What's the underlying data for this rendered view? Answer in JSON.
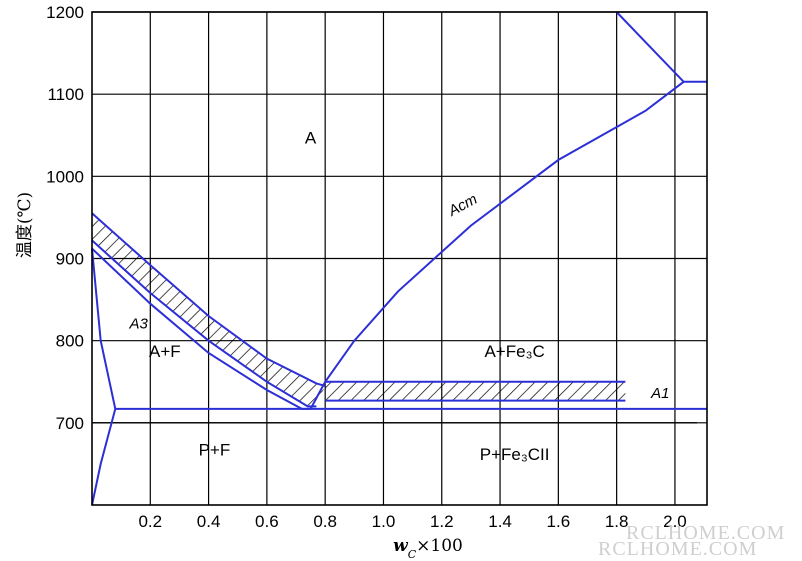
{
  "chart_data": {
    "type": "phase-diagram",
    "ylabel": "温度(℃)",
    "xlabel_main": "w",
    "xlabel_sub": "C",
    "xlabel_suffix": "×100",
    "xlim": [
      0,
      2.11
    ],
    "ylim": [
      600,
      1200
    ],
    "x_ticks": [
      "0.2",
      "0.4",
      "0.6",
      "0.8",
      "1.0",
      "1.2",
      "1.4",
      "1.6",
      "1.8",
      "2.0"
    ],
    "y_ticks": [
      "700",
      "800",
      "900",
      "1000",
      "1100",
      "1200"
    ],
    "grid": true,
    "lines": [
      {
        "name": "A3 upper",
        "points": [
          [
            0,
            955
          ],
          [
            0.2,
            892
          ],
          [
            0.4,
            830
          ],
          [
            0.6,
            778
          ],
          [
            0.77,
            748
          ],
          [
            0.8,
            745
          ]
        ]
      },
      {
        "name": "A3 lower",
        "points": [
          [
            0,
            922
          ],
          [
            0.2,
            858
          ],
          [
            0.4,
            800
          ],
          [
            0.6,
            750
          ],
          [
            0.74,
            720
          ],
          [
            0.77,
            720
          ]
        ]
      },
      {
        "name": "A3 middle",
        "points": [
          [
            0,
            912
          ],
          [
            0.2,
            845
          ],
          [
            0.4,
            785
          ],
          [
            0.6,
            740
          ],
          [
            0.72,
            717
          ],
          [
            0.75,
            717
          ]
        ]
      },
      {
        "name": "Acm",
        "points": [
          [
            0.75,
            717
          ],
          [
            0.8,
            750
          ],
          [
            0.9,
            800
          ],
          [
            1.05,
            860
          ],
          [
            1.3,
            940
          ],
          [
            1.6,
            1020
          ],
          [
            1.9,
            1080
          ],
          [
            2.03,
            1115
          ],
          [
            2.11,
            1115
          ]
        ]
      },
      {
        "name": "A1 upper",
        "points": [
          [
            0.8,
            750
          ],
          [
            1.83,
            750
          ]
        ]
      },
      {
        "name": "A1 lower",
        "points": [
          [
            0.8,
            727
          ],
          [
            1.83,
            727
          ]
        ]
      },
      {
        "name": "A1 line",
        "points": [
          [
            0.08,
            717
          ],
          [
            2.11,
            717
          ]
        ]
      },
      {
        "name": "ferrite boundary",
        "points": [
          [
            0,
            912
          ],
          [
            0.03,
            800
          ],
          [
            0.08,
            717
          ],
          [
            0.03,
            650
          ],
          [
            0,
            600
          ]
        ]
      },
      {
        "name": "upper right",
        "points": [
          [
            1.8,
            1200
          ],
          [
            2.03,
            1115
          ]
        ]
      }
    ],
    "black_line": {
      "y": 700,
      "x_range": [
        0,
        2.11
      ]
    },
    "regions": [
      {
        "label": "A",
        "x": 0.75,
        "y": 1040
      },
      {
        "label": "A+F",
        "x": 0.25,
        "y": 780
      },
      {
        "label": "P+F",
        "x": 0.42,
        "y": 660
      },
      {
        "label": "A+Fe₃C",
        "x": 1.45,
        "y": 780
      },
      {
        "label": "P+Fe₃CII",
        "x": 1.45,
        "y": 655
      }
    ],
    "curve_labels": [
      {
        "label": "Acm",
        "x": 1.28,
        "y": 960
      },
      {
        "label": "A3",
        "x": 0.16,
        "y": 815
      },
      {
        "label": "A1",
        "x": 1.95,
        "y": 730
      }
    ]
  },
  "watermark": {
    "line1": "RCLHOME.COM",
    "line2": "RCLHOME.COM"
  }
}
